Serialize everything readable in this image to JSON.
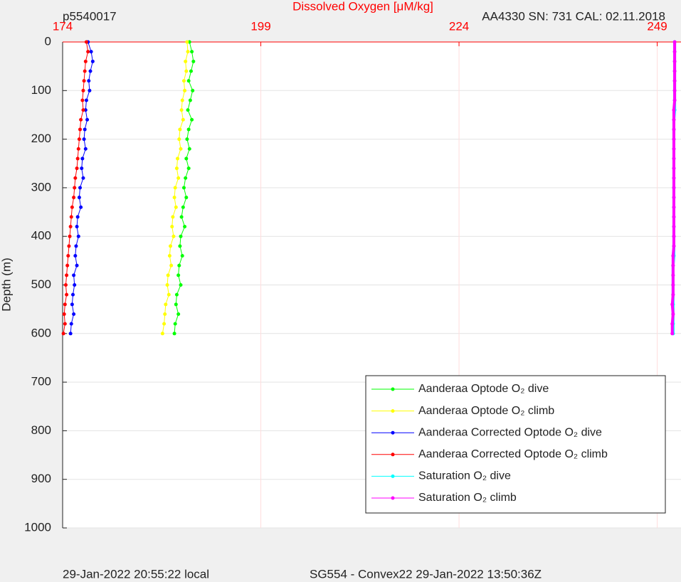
{
  "chart_data": {
    "type": "scatter",
    "title": "Dissolved Oxygen [μM/kg]",
    "left_note": "p5540017",
    "right_note": "AA4330   SN: 731   CAL: 02.11.2018",
    "ylabel": "Depth (m)",
    "footer_left": "29-Jan-2022 20:55:22 local",
    "footer_right": "SG554 - Convex22 29-Jan-2022 13:50:36Z",
    "xlim": [
      174,
      252
    ],
    "xticks": [
      174,
      199,
      224,
      249
    ],
    "ylim": [
      0,
      1000
    ],
    "yticks": [
      0,
      100,
      200,
      300,
      400,
      500,
      600,
      700,
      800,
      900,
      1000
    ],
    "y_reversed": true,
    "x_axis_position": "top",
    "x_axis_color": "#ff0000",
    "grid": true,
    "y": [
      0,
      20,
      40,
      60,
      80,
      100,
      120,
      140,
      160,
      180,
      200,
      220,
      240,
      260,
      280,
      300,
      320,
      340,
      360,
      380,
      400,
      420,
      440,
      460,
      480,
      500,
      520,
      540,
      560,
      580,
      600
    ],
    "series": [
      {
        "name": "Aanderaa Optode O₂ dive",
        "color": "#00ff00",
        "values": [
          190.0,
          190.3,
          190.5,
          190.2,
          189.9,
          190.4,
          190.1,
          189.8,
          190.3,
          189.9,
          189.7,
          190.0,
          189.6,
          189.9,
          189.5,
          189.3,
          189.6,
          189.2,
          189.0,
          189.4,
          188.9,
          188.8,
          189.1,
          188.7,
          188.6,
          188.9,
          188.4,
          188.3,
          188.6,
          188.2,
          188.1
        ]
      },
      {
        "name": "Aanderaa Optode O₂ climb",
        "color": "#ffff00",
        "values": [
          189.7,
          189.8,
          189.5,
          189.6,
          189.3,
          189.4,
          189.1,
          189.0,
          189.2,
          188.8,
          188.7,
          188.9,
          188.5,
          188.4,
          188.6,
          188.2,
          188.1,
          188.3,
          187.9,
          187.8,
          188.0,
          187.6,
          187.5,
          187.7,
          187.3,
          187.2,
          187.4,
          187.0,
          186.9,
          186.8,
          186.6
        ]
      },
      {
        "name": "Aanderaa Corrected Optode O₂ dive",
        "color": "#0000ff",
        "values": [
          177.2,
          177.6,
          177.8,
          177.5,
          177.3,
          177.4,
          177.0,
          176.9,
          177.1,
          176.8,
          176.7,
          176.9,
          176.5,
          176.4,
          176.6,
          176.2,
          176.1,
          176.3,
          175.9,
          175.8,
          176.0,
          175.7,
          175.6,
          175.8,
          175.4,
          175.5,
          175.3,
          175.2,
          175.4,
          175.1,
          175.0
        ]
      },
      {
        "name": "Aanderaa Corrected Optode O₂ climb",
        "color": "#ff0000",
        "values": [
          177.0,
          177.2,
          176.9,
          176.8,
          176.7,
          176.6,
          176.5,
          176.6,
          176.3,
          176.2,
          176.1,
          176.0,
          175.9,
          175.8,
          175.6,
          175.5,
          175.4,
          175.2,
          175.1,
          175.0,
          174.9,
          174.8,
          174.7,
          174.6,
          174.5,
          174.4,
          174.5,
          174.3,
          174.2,
          174.3,
          174.1
        ]
      },
      {
        "name": "Saturation O₂ dive",
        "color": "#00ffff",
        "values": [
          251.2,
          251.2,
          251.2,
          251.2,
          251.2,
          251.2,
          251.2,
          251.2,
          251.1,
          251.1,
          251.1,
          251.1,
          251.1,
          251.1,
          251.1,
          251.1,
          251.1,
          251.1,
          251.1,
          251.1,
          251.1,
          251.1,
          251.1,
          251.0,
          251.0,
          251.0,
          251.0,
          251.0,
          251.0,
          251.0,
          251.0
        ]
      },
      {
        "name": "Saturation O₂ climb",
        "color": "#ff00ff",
        "values": [
          251.2,
          251.2,
          251.2,
          251.2,
          251.2,
          251.2,
          251.2,
          251.1,
          251.1,
          251.1,
          251.1,
          251.1,
          251.1,
          251.1,
          251.1,
          251.1,
          251.1,
          251.1,
          251.1,
          251.1,
          251.1,
          251.1,
          251.0,
          251.0,
          251.0,
          251.0,
          251.0,
          250.9,
          251.0,
          250.9,
          250.9
        ]
      }
    ]
  }
}
